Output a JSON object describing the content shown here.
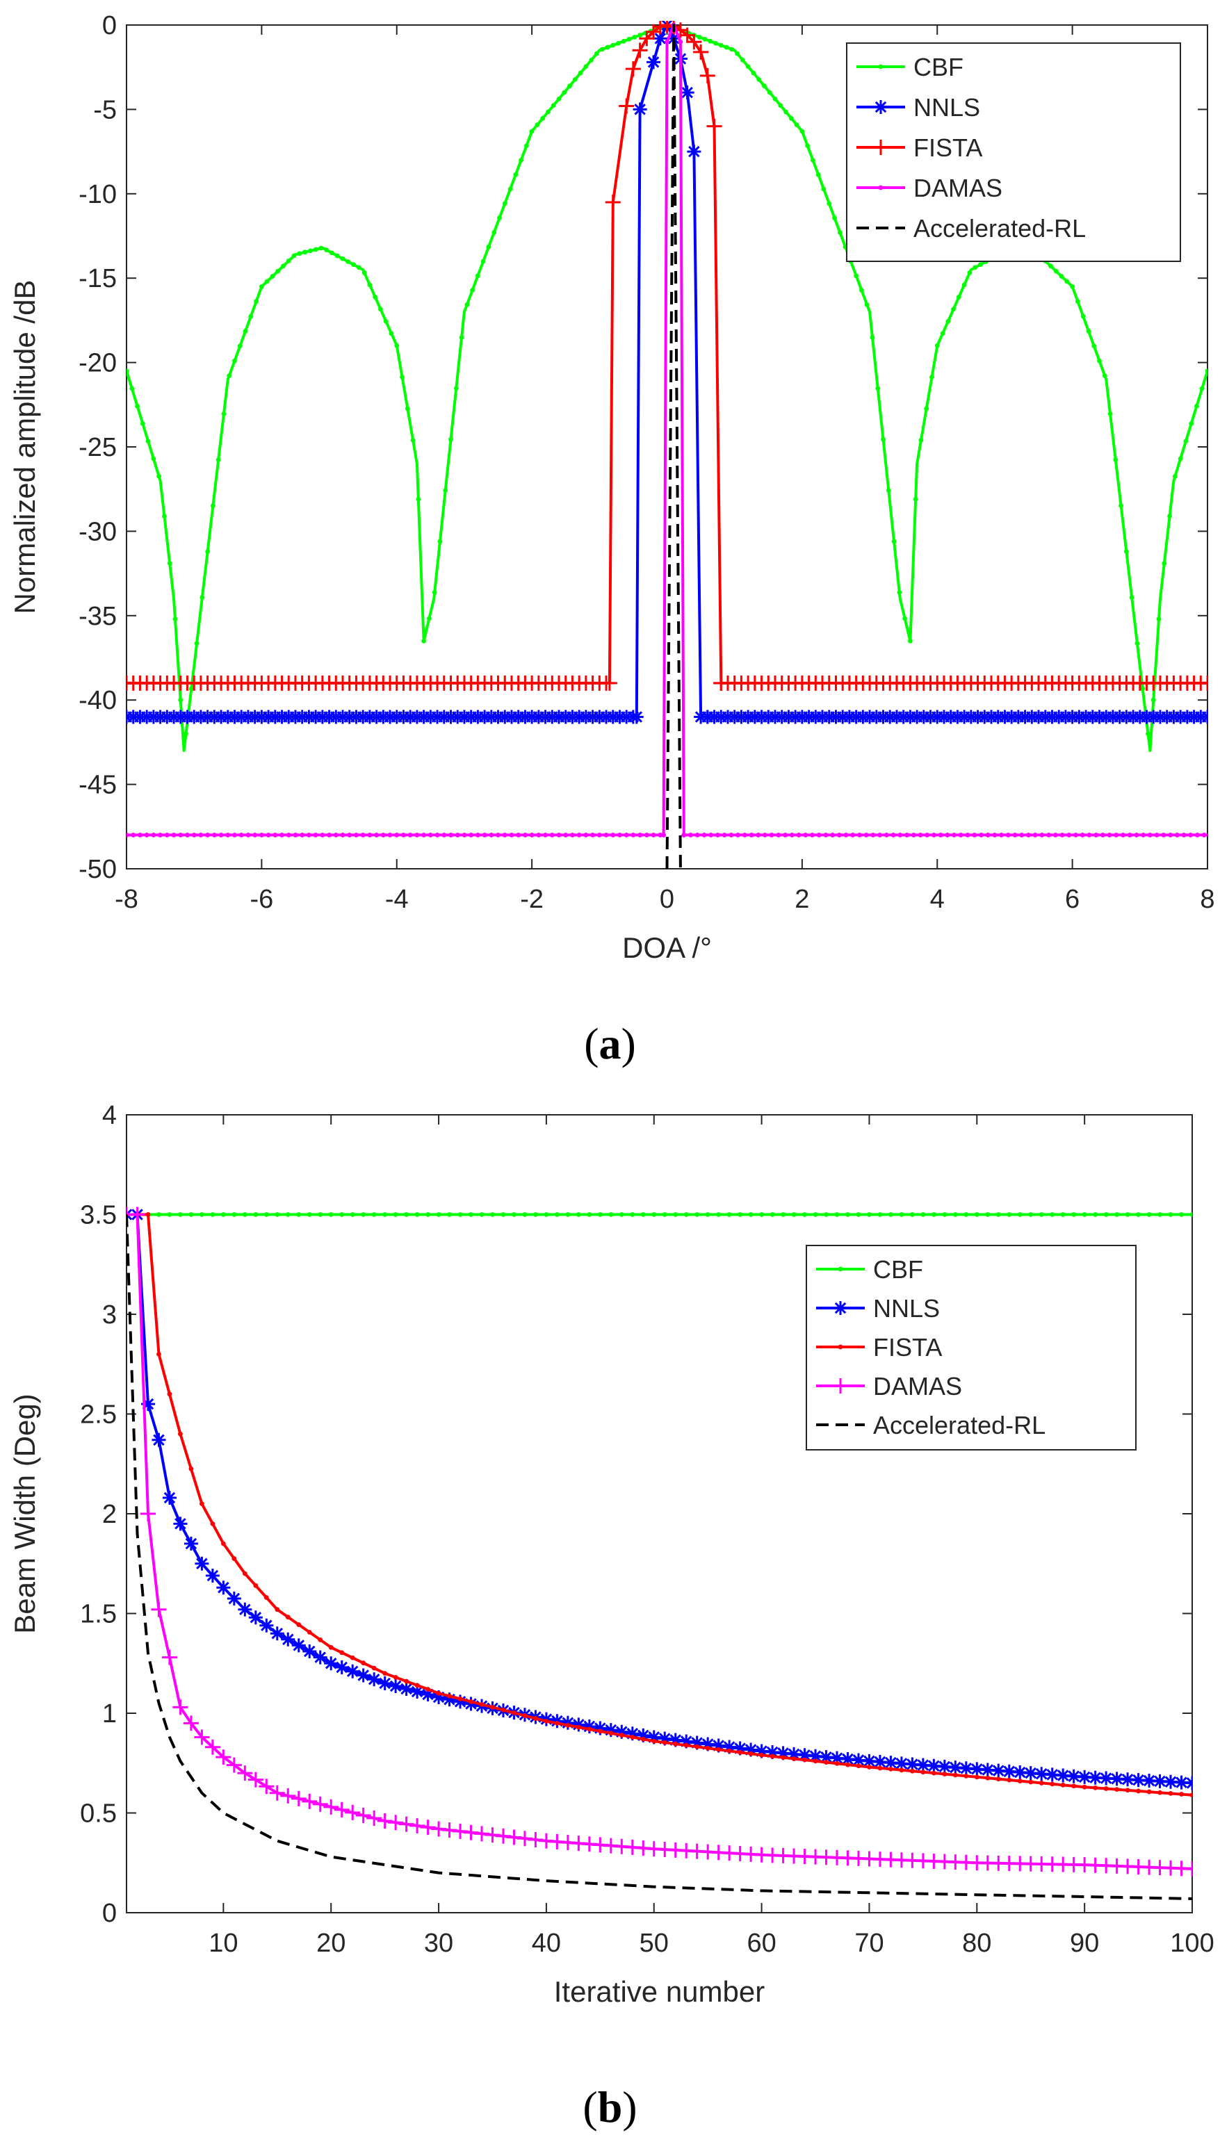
{
  "chart_data": [
    {
      "id": "a",
      "type": "line",
      "panel_label": "a",
      "xlabel": "DOA /°",
      "ylabel": "Normalized amplitude /dB",
      "xlim": [
        -8,
        8
      ],
      "ylim": [
        -50,
        0
      ],
      "xticks": [
        -8,
        -6,
        -4,
        -2,
        0,
        2,
        4,
        6,
        8
      ],
      "yticks": [
        0,
        -5,
        -10,
        -15,
        -20,
        -25,
        -30,
        -35,
        -40,
        -45,
        -50
      ],
      "legend_position": "top-right",
      "series": [
        {
          "name": "CBF",
          "color": "#00ff00",
          "marker": "dot",
          "style": "solid",
          "kind": "sinc",
          "x": [
            -8.0,
            -7.5,
            -7.3,
            -7.15,
            -7.0,
            -6.5,
            -6.0,
            -5.5,
            -5.1,
            -4.5,
            -4.0,
            -3.7,
            -3.6,
            -3.45,
            -3.0,
            -2.0,
            -1.0,
            0.0,
            1.0,
            2.0,
            3.0,
            3.45,
            3.6,
            3.7,
            4.0,
            4.5,
            5.1,
            5.5,
            6.0,
            6.5,
            7.0,
            7.15,
            7.3,
            7.5,
            8.0
          ],
          "y": [
            -20.5,
            -27.0,
            -34.0,
            -43.0,
            -38.0,
            -21.0,
            -15.5,
            -13.6,
            -13.2,
            -14.5,
            -19.0,
            -26.0,
            -36.5,
            -34.0,
            -17.0,
            -6.3,
            -1.5,
            0.0,
            -1.5,
            -6.3,
            -17.0,
            -34.0,
            -36.5,
            -26.0,
            -19.0,
            -14.5,
            -13.2,
            -13.6,
            -15.5,
            -21.0,
            -38.0,
            -43.0,
            -34.0,
            -27.0,
            -20.5
          ]
        },
        {
          "name": "NNLS",
          "color": "#0000ff",
          "marker": "asterisk",
          "style": "solid",
          "floor": -41.0,
          "floor_x": [
            -8.0,
            -0.45,
            0.6,
            8.0
          ],
          "peak_x": [
            -0.45,
            -0.4,
            -0.2,
            -0.1,
            0.0,
            0.1,
            0.2,
            0.3,
            0.4,
            0.5,
            0.6
          ],
          "peak_y": [
            -41.0,
            -5.0,
            -2.2,
            -0.8,
            0.0,
            -0.8,
            -2.0,
            -4.0,
            -7.5,
            -41.0,
            -41.0
          ]
        },
        {
          "name": "FISTA",
          "color": "#ff0000",
          "marker": "plus",
          "style": "solid",
          "floor": -39.0,
          "floor_x": [
            -8.0,
            -0.85,
            0.8,
            8.0
          ],
          "peak_x": [
            -0.85,
            -0.8,
            -0.6,
            -0.5,
            -0.4,
            -0.3,
            -0.2,
            -0.1,
            0.0,
            0.1,
            0.2,
            0.3,
            0.4,
            0.5,
            0.6,
            0.7,
            0.8
          ],
          "peak_y": [
            -39.0,
            -10.5,
            -4.8,
            -2.6,
            -1.5,
            -0.8,
            -0.4,
            -0.1,
            0.0,
            -0.1,
            -0.3,
            -0.6,
            -1.0,
            -1.6,
            -3.0,
            -6.0,
            -39.0
          ]
        },
        {
          "name": "DAMAS",
          "color": "#ff00ff",
          "marker": "dot",
          "style": "solid",
          "floor": -48.0,
          "floor_x": [
            -8.0,
            -0.05,
            0.25,
            8.0
          ],
          "peak_x": [
            -0.05,
            0.0,
            0.1,
            0.2,
            0.25
          ],
          "peak_y": [
            -48.0,
            -1.0,
            0.0,
            -1.0,
            -48.0
          ]
        },
        {
          "name": "Accelerated-RL",
          "color": "#000000",
          "marker": "none",
          "style": "dashed",
          "x": [
            0.0,
            0.1,
            0.2
          ],
          "y": [
            -50.0,
            0.0,
            -50.0
          ]
        }
      ]
    },
    {
      "id": "b",
      "type": "line",
      "panel_label": "b",
      "xlabel": "Iterative number",
      "ylabel": "Beam Width (Deg)",
      "xlim": [
        1,
        100
      ],
      "ylim": [
        0,
        4
      ],
      "xticks": [
        10,
        20,
        30,
        40,
        50,
        60,
        70,
        80,
        90,
        100
      ],
      "yticks": [
        0,
        0.5,
        1,
        1.5,
        2,
        2.5,
        3,
        3.5,
        4
      ],
      "legend_position": "right",
      "series": [
        {
          "name": "CBF",
          "color": "#00ff00",
          "marker": "dot",
          "style": "solid",
          "x": [
            1,
            100
          ],
          "y": [
            3.5,
            3.5
          ]
        },
        {
          "name": "NNLS",
          "color": "#0000ff",
          "marker": "asterisk",
          "style": "solid",
          "x": [
            1,
            2,
            3,
            4,
            5,
            6,
            8,
            10,
            12,
            15,
            20,
            25,
            30,
            40,
            50,
            60,
            70,
            80,
            90,
            100
          ],
          "y": [
            3.5,
            3.5,
            2.55,
            2.37,
            2.08,
            1.95,
            1.75,
            1.63,
            1.52,
            1.4,
            1.25,
            1.15,
            1.08,
            0.97,
            0.88,
            0.81,
            0.76,
            0.72,
            0.68,
            0.65
          ]
        },
        {
          "name": "FISTA",
          "color": "#ff0000",
          "marker": "dot",
          "style": "solid",
          "x": [
            1,
            2,
            3,
            4,
            5,
            6,
            8,
            10,
            12,
            15,
            20,
            25,
            30,
            40,
            50,
            60,
            70,
            80,
            90,
            100
          ],
          "y": [
            3.5,
            3.5,
            3.5,
            2.8,
            2.6,
            2.4,
            2.05,
            1.85,
            1.7,
            1.52,
            1.33,
            1.2,
            1.1,
            0.96,
            0.86,
            0.79,
            0.73,
            0.68,
            0.63,
            0.59
          ]
        },
        {
          "name": "DAMAS",
          "color": "#ff00ff",
          "marker": "plus",
          "style": "solid",
          "x": [
            1,
            2,
            3,
            4,
            5,
            6,
            7,
            8,
            10,
            12,
            15,
            20,
            25,
            30,
            40,
            50,
            60,
            70,
            80,
            90,
            100
          ],
          "y": [
            3.5,
            3.5,
            2.0,
            1.52,
            1.28,
            1.03,
            0.95,
            0.88,
            0.78,
            0.7,
            0.6,
            0.53,
            0.46,
            0.42,
            0.36,
            0.32,
            0.29,
            0.27,
            0.25,
            0.24,
            0.22
          ]
        },
        {
          "name": "Accelerated-RL",
          "color": "#000000",
          "marker": "none",
          "style": "dashed",
          "x": [
            1,
            2,
            3,
            4,
            5,
            6,
            8,
            10,
            15,
            20,
            30,
            40,
            50,
            60,
            70,
            80,
            90,
            100
          ],
          "y": [
            3.5,
            1.9,
            1.3,
            1.05,
            0.88,
            0.76,
            0.6,
            0.5,
            0.36,
            0.28,
            0.2,
            0.16,
            0.13,
            0.11,
            0.1,
            0.09,
            0.08,
            0.07
          ]
        }
      ]
    }
  ]
}
